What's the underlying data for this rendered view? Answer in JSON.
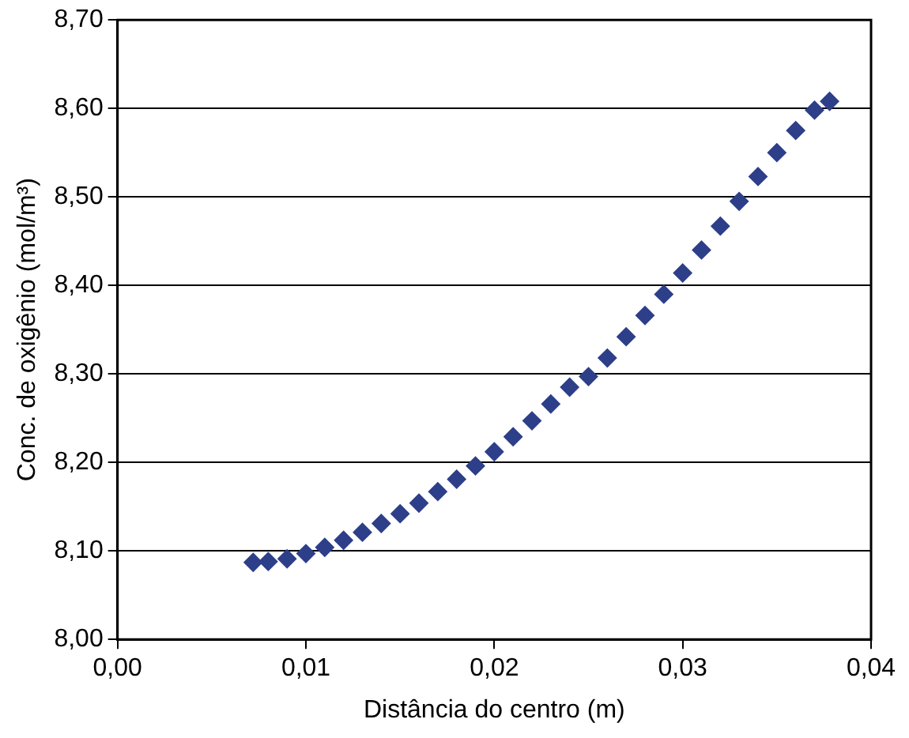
{
  "chart_data": {
    "type": "scatter",
    "xlabel": "Distância do centro (m)",
    "ylabel": "Conc. de oxigênio (mol/m³)",
    "x": [
      0.0072,
      0.008,
      0.009,
      0.01,
      0.011,
      0.012,
      0.013,
      0.014,
      0.015,
      0.016,
      0.017,
      0.018,
      0.019,
      0.02,
      0.021,
      0.022,
      0.023,
      0.024,
      0.025,
      0.026,
      0.027,
      0.028,
      0.029,
      0.03,
      0.031,
      0.032,
      0.033,
      0.034,
      0.035,
      0.036,
      0.037,
      0.0378
    ],
    "series": [
      {
        "color": "#2e3f8a",
        "values": [
          8.087,
          8.088,
          8.091,
          8.097,
          8.104,
          8.112,
          8.121,
          8.131,
          8.142,
          8.154,
          8.167,
          8.181,
          8.196,
          8.212,
          8.229,
          8.247,
          8.266,
          8.285,
          8.297,
          8.318,
          8.342,
          8.366,
          8.39,
          8.414,
          8.44,
          8.467,
          8.495,
          8.523,
          8.55,
          8.575,
          8.598,
          8.608
        ]
      }
    ],
    "xlim": [
      0,
      0.04
    ],
    "xticks": [
      {
        "value": 0,
        "label": "0,00"
      },
      {
        "value": 0.01,
        "label": "0,01"
      },
      {
        "value": 0.02,
        "label": "0,02"
      },
      {
        "value": 0.03,
        "label": "0,03"
      },
      {
        "value": 0.04,
        "label": "0,04"
      }
    ],
    "ylim": [
      8.0,
      8.7
    ],
    "yticks": [
      {
        "value": 8.0,
        "label": "8,00"
      },
      {
        "value": 8.1,
        "label": "8,10"
      },
      {
        "value": 8.2,
        "label": "8,20"
      },
      {
        "value": 8.3,
        "label": "8,30"
      },
      {
        "value": 8.4,
        "label": "8,40"
      },
      {
        "value": 8.5,
        "label": "8,50"
      },
      {
        "value": 8.6,
        "label": "8,60"
      },
      {
        "value": 8.7,
        "label": "8,70"
      }
    ],
    "grid": "y",
    "legend": false,
    "marker": "diamond"
  }
}
